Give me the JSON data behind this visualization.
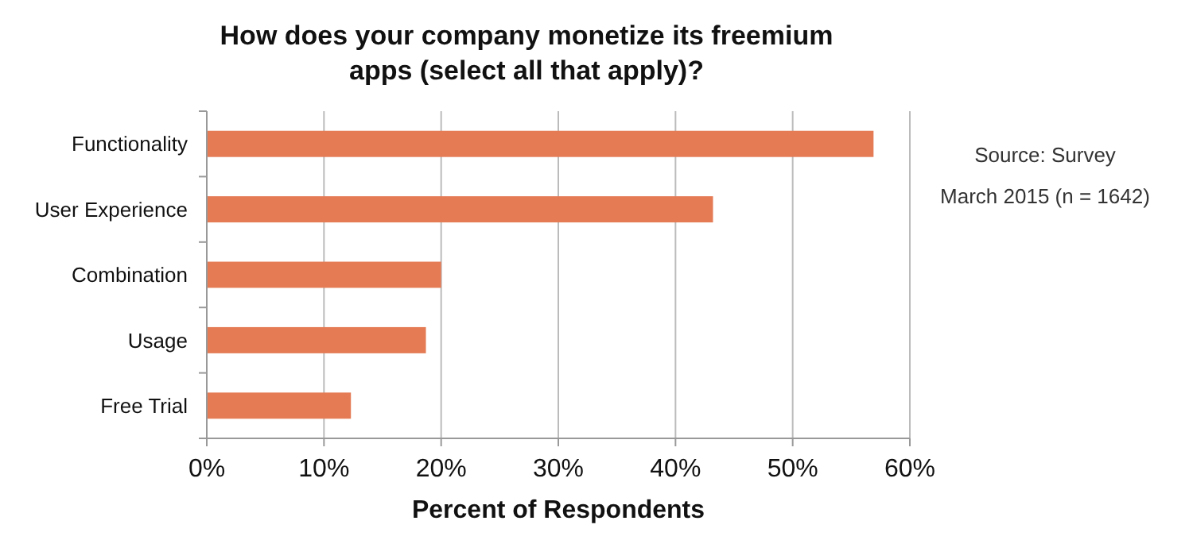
{
  "chart_data": {
    "type": "bar",
    "orientation": "horizontal",
    "title": "How does your company monetize its freemium apps (select all that apply)?",
    "xlabel": "Percent of Respondents",
    "categories": [
      "Functionality",
      "User Experience",
      "Combination",
      "Usage",
      "Free Trial"
    ],
    "values": [
      56.9,
      43.2,
      20.0,
      18.7,
      12.3
    ],
    "color": "#e47b55",
    "xlim": [
      0,
      60
    ],
    "xticks": [
      {
        "value": 0,
        "label": "0%"
      },
      {
        "value": 10,
        "label": "10%"
      },
      {
        "value": 20,
        "label": "20%"
      },
      {
        "value": 30,
        "label": "30%"
      },
      {
        "value": 40,
        "label": "40%"
      },
      {
        "value": 50,
        "label": "50%"
      },
      {
        "value": 60,
        "label": "60%"
      }
    ],
    "grid": "x",
    "annotations": [
      "Source: Survey",
      "March 2015 (n = 1642)"
    ]
  }
}
